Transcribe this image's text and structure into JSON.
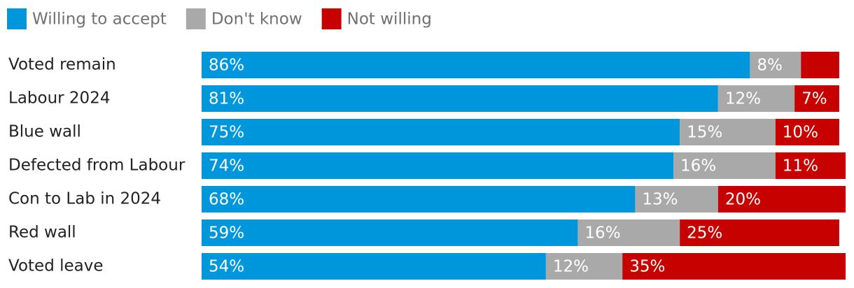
{
  "chart_data": {
    "type": "stacked-bar-horizontal",
    "categories": [
      "Voted remain",
      "Labour 2024",
      "Blue wall",
      "Defected from Labour",
      "Con to Lab in 2024",
      "Red wall",
      "Voted leave"
    ],
    "series": [
      {
        "name": "Willing to accept",
        "color": "#0096db",
        "values": [
          86,
          81,
          75,
          74,
          68,
          59,
          54
        ],
        "value_labels": [
          "86%",
          "81%",
          "75%",
          "74%",
          "68%",
          "59%",
          "54%"
        ]
      },
      {
        "name": "Don't know",
        "color": "#a9a9a9",
        "values": [
          8,
          12,
          15,
          16,
          13,
          16,
          12
        ],
        "value_labels": [
          "8%",
          "12%",
          "15%",
          "16%",
          "13%",
          "16%",
          "12%"
        ]
      },
      {
        "name": "Not willing",
        "color": "#c70000",
        "values": [
          6,
          7,
          10,
          11,
          20,
          25,
          35
        ],
        "value_labels": [
          null,
          "7%",
          "10%",
          "11%",
          "20%",
          "25%",
          "35%"
        ]
      }
    ]
  }
}
